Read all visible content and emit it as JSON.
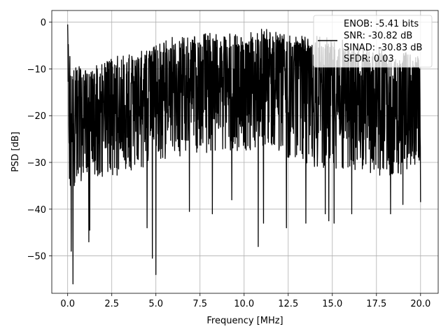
{
  "chart_data": {
    "type": "line",
    "title": "",
    "xlabel": "Frequency [MHz]",
    "ylabel": "PSD [dB]",
    "xlim": [
      -0.9,
      21.0
    ],
    "ylim": [
      -58,
      2.5
    ],
    "xticks": [
      0.0,
      2.5,
      5.0,
      7.5,
      10.0,
      12.5,
      15.0,
      17.5,
      20.0
    ],
    "xtick_labels": [
      "0.0",
      "2.5",
      "5.0",
      "7.5",
      "10.0",
      "12.5",
      "15.0",
      "17.5",
      "20.0"
    ],
    "yticks": [
      0,
      -10,
      -20,
      -30,
      -40,
      -50
    ],
    "ytick_labels": [
      "0",
      "−10",
      "−20",
      "−30",
      "−40",
      "−50"
    ],
    "grid": true,
    "legend_position": "top-right",
    "legend_lines": [
      "ENOB: -5.41 bits",
      "SNR: -30.82 dB",
      "SINAD: -30.83 dB",
      "SFDR: 0.03"
    ],
    "series": [
      {
        "color": "#000000",
        "x_range": [
          0.0,
          20.0
        ],
        "description_of_shape": "dense noise spectrum",
        "upper_envelope": [
          [
            0.0,
            -0.5
          ],
          [
            0.15,
            -7
          ],
          [
            1,
            -10
          ],
          [
            3,
            -7
          ],
          [
            5,
            -5
          ],
          [
            6,
            -3
          ],
          [
            7,
            -3
          ],
          [
            8.5,
            -2
          ],
          [
            10,
            -3
          ],
          [
            11,
            -1
          ],
          [
            13,
            -3
          ],
          [
            15,
            -3
          ],
          [
            16,
            -4
          ],
          [
            17,
            -5
          ],
          [
            18.5,
            -6
          ],
          [
            20,
            -7
          ]
        ],
        "lower_envelope": [
          [
            0.0,
            -37
          ],
          [
            1,
            -33
          ],
          [
            3,
            -33
          ],
          [
            5,
            -30
          ],
          [
            7,
            -28
          ],
          [
            9,
            -28
          ],
          [
            11,
            -27
          ],
          [
            13,
            -30
          ],
          [
            15,
            -32
          ],
          [
            17,
            -33
          ],
          [
            19,
            -33
          ],
          [
            20,
            -30
          ]
        ],
        "spikes": [
          [
            0.0,
            -0.5
          ],
          [
            0.2,
            -49
          ],
          [
            0.3,
            -56
          ],
          [
            1.2,
            -47
          ],
          [
            1.25,
            -44.5
          ],
          [
            4.5,
            -44
          ],
          [
            4.8,
            -50.5
          ],
          [
            5.0,
            -54
          ],
          [
            6.9,
            -40.5
          ],
          [
            8.2,
            -41
          ],
          [
            9.3,
            -38
          ],
          [
            10.8,
            -48
          ],
          [
            11.1,
            -43
          ],
          [
            12.4,
            -44
          ],
          [
            13.5,
            -43
          ],
          [
            14.6,
            -41
          ],
          [
            14.8,
            -42.5
          ],
          [
            15.1,
            -43
          ],
          [
            16.1,
            -41
          ],
          [
            18.3,
            -41
          ],
          [
            19.0,
            -39
          ],
          [
            20.0,
            -38.5
          ]
        ]
      }
    ]
  }
}
